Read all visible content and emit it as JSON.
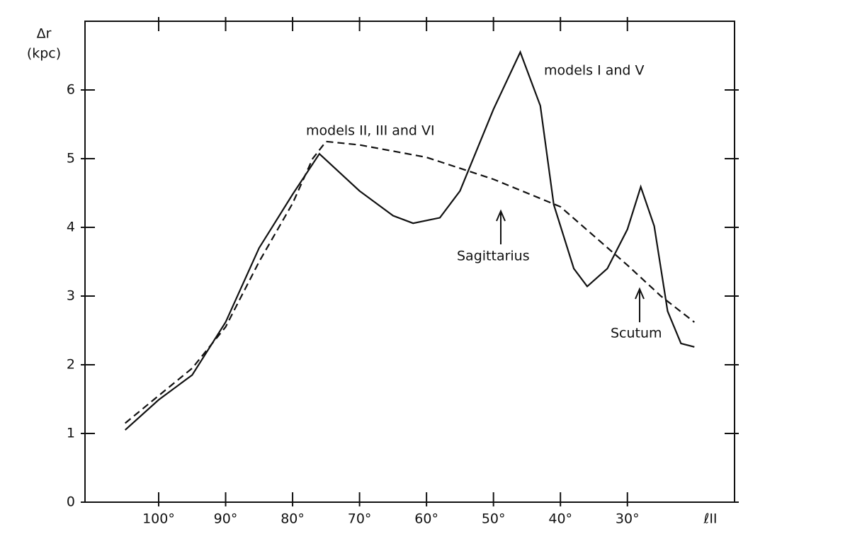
{
  "chart_data": {
    "type": "line",
    "y_label": "Δr",
    "y_unit": "(kpc)",
    "x_label": "ℓII",
    "xlim": [
      111,
      14
    ],
    "ylim": [
      0,
      7
    ],
    "xticks": [
      {
        "value": 100,
        "label": "100°"
      },
      {
        "value": 90,
        "label": "90°"
      },
      {
        "value": 80,
        "label": "80°"
      },
      {
        "value": 70,
        "label": "70°"
      },
      {
        "value": 60,
        "label": "60°"
      },
      {
        "value": 50,
        "label": "50°"
      },
      {
        "value": 40,
        "label": "40°"
      },
      {
        "value": 30,
        "label": "30°"
      }
    ],
    "yticks": [
      0,
      1,
      2,
      3,
      4,
      5,
      6
    ],
    "series": [
      {
        "name": "models I and V",
        "color": "#111111",
        "dash": "solid",
        "x": [
          105,
          100,
          95,
          90,
          85,
          80,
          76,
          70,
          65,
          62,
          58,
          55,
          50,
          46,
          43,
          41,
          38,
          36,
          33,
          30,
          28,
          26,
          24,
          22,
          20
        ],
        "values": [
          1.05,
          1.49,
          1.85,
          2.62,
          3.7,
          4.48,
          5.07,
          4.53,
          4.17,
          4.06,
          4.14,
          4.53,
          5.72,
          6.55,
          5.77,
          4.33,
          3.4,
          3.14,
          3.4,
          3.97,
          4.59,
          4.02,
          2.78,
          2.31,
          2.26
        ]
      },
      {
        "name": "models II, III and VI",
        "color": "#111111",
        "dash": "dashed",
        "x": [
          105,
          100,
          95,
          90,
          85,
          80,
          77,
          75,
          70,
          60,
          50,
          40,
          30,
          25,
          20
        ],
        "values": [
          1.15,
          1.55,
          1.95,
          2.55,
          3.5,
          4.35,
          5.0,
          5.25,
          5.2,
          5.02,
          4.7,
          4.3,
          3.45,
          3.0,
          2.62
        ]
      }
    ],
    "annotations": [
      "Sagittarius",
      "Scutum"
    ]
  }
}
